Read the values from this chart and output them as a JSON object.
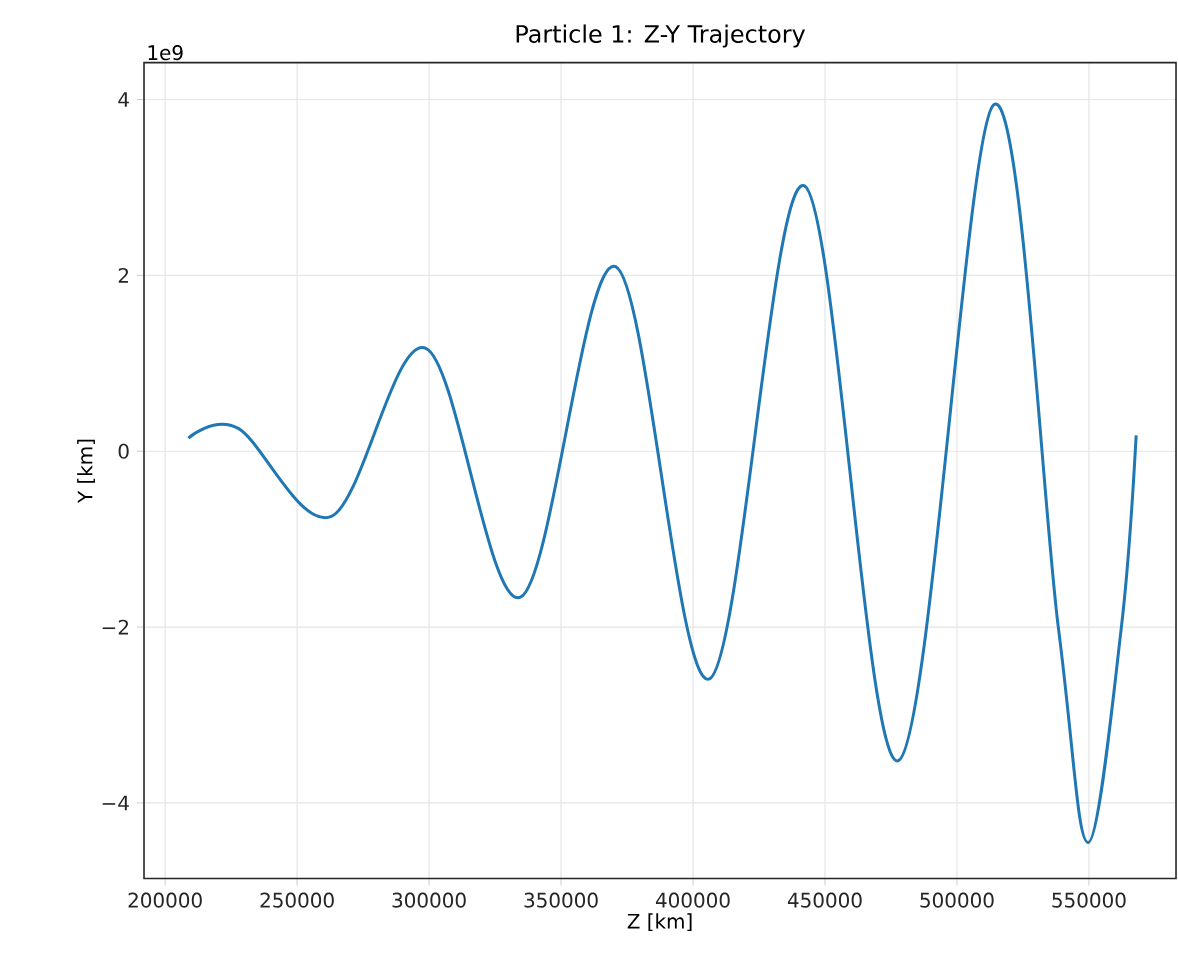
{
  "chart_data": {
    "type": "line",
    "title": "Particle 1: Z-Y Trajectory",
    "xlabel": "Z [km]",
    "ylabel": "Y [km]",
    "annotations": [
      "1e9"
    ],
    "x": [
      208800,
      227700,
      263000,
      298800,
      334600,
      370700,
      406200,
      442100,
      477800,
      513900,
      538400,
      549700,
      562300,
      567900
    ],
    "series": [
      {
        "color": "#1f77b4",
        "values": [
          0.15,
          0.26,
          -0.74,
          1.17,
          -1.66,
          2.1,
          -2.59,
          3.02,
          -3.52,
          3.94,
          -2.0,
          -4.45,
          -2.0,
          0.18
        ]
      }
    ],
    "xlim": [
      192000,
      583000
    ],
    "ylim": [
      -4.86,
      4.42
    ],
    "xticks": [
      200000,
      250000,
      300000,
      350000,
      400000,
      450000,
      500000,
      550000
    ],
    "yticks": [
      {
        "value": -4,
        "label": "−4"
      },
      {
        "value": -2,
        "label": "−2"
      },
      0,
      2,
      4
    ],
    "grid": true,
    "line_style": "solid",
    "marker": "none"
  }
}
